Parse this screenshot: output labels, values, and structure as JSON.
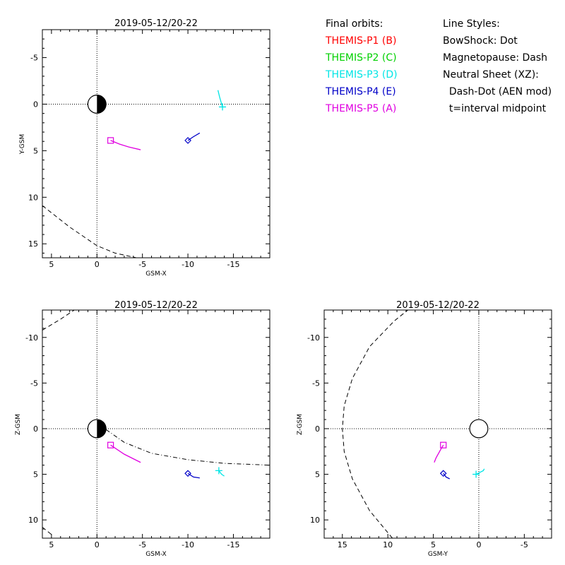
{
  "legend": {
    "orbits_title": "Final orbits:",
    "probes": [
      {
        "label": "THEMIS-P1 (B)",
        "color": "#ff0000"
      },
      {
        "label": "THEMIS-P2 (C)",
        "color": "#00d000"
      },
      {
        "label": "THEMIS-P3 (D)",
        "color": "#00e5e5"
      },
      {
        "label": "THEMIS-P4 (E)",
        "color": "#0000c8"
      },
      {
        "label": "THEMIS-P5 (A)",
        "color": "#e000e0"
      }
    ],
    "styles_title": "Line Styles:",
    "styles": [
      "BowShock: Dot",
      "Magnetopause: Dash",
      "Neutral Sheet (XZ):",
      "  Dash-Dot (AEN mod)",
      "  t=interval midpoint"
    ]
  },
  "chart_data": [
    {
      "type": "line",
      "title": "2019-05-12/20-22",
      "xlabel": "GSM-X",
      "ylabel": "Y-GSM",
      "xlim": [
        6,
        -19
      ],
      "ylim": [
        -8,
        16.5
      ],
      "xticks": [
        "5",
        "0",
        "-5",
        "-10",
        "-15"
      ],
      "yticks": [
        "-5",
        "0",
        "5",
        "10",
        "15"
      ],
      "earth": "half-shaded",
      "series": [
        {
          "probe": "THEMIS-P5 (A)",
          "color": "#e000e0",
          "marker": "square",
          "x": [
            -1.5,
            -2.5,
            -3.5,
            -4.8
          ],
          "y": [
            3.9,
            4.3,
            4.6,
            4.9
          ]
        },
        {
          "probe": "THEMIS-P4 (E)",
          "color": "#0000c8",
          "marker": "diamond",
          "x": [
            -10.0,
            -10.6,
            -11.3
          ],
          "y": [
            3.9,
            3.5,
            3.1
          ]
        },
        {
          "probe": "THEMIS-P3 (D)",
          "color": "#00e5e5",
          "marker": "plus",
          "x": [
            -13.8,
            -13.5,
            -13.3
          ],
          "y": [
            0.3,
            -0.7,
            -1.5
          ]
        }
      ],
      "boundaries": [
        {
          "name": "Magnetopause",
          "style": "dash",
          "x": [
            6,
            3,
            0,
            -2,
            -4.8
          ],
          "y": [
            10.9,
            13.2,
            15.2,
            16.0,
            16.6
          ]
        }
      ]
    },
    {
      "type": "line",
      "title": "2019-05-12/20-22",
      "xlabel": "GSM-X",
      "ylabel": "Z-GSM",
      "xlim": [
        6,
        -19
      ],
      "ylim": [
        -13,
        12
      ],
      "xticks": [
        "5",
        "0",
        "-5",
        "-10",
        "-15"
      ],
      "yticks": [
        "-10",
        "-5",
        "0",
        "5",
        "10"
      ],
      "earth": "half-shaded",
      "series": [
        {
          "probe": "THEMIS-P5 (A)",
          "color": "#e000e0",
          "marker": "square",
          "x": [
            -1.5,
            -3.0,
            -4.8
          ],
          "y": [
            1.8,
            2.8,
            3.7
          ]
        },
        {
          "probe": "THEMIS-P4 (E)",
          "color": "#0000c8",
          "marker": "diamond",
          "x": [
            -10.0,
            -10.6,
            -11.3
          ],
          "y": [
            4.9,
            5.3,
            5.4
          ]
        },
        {
          "probe": "THEMIS-P3 (D)",
          "color": "#00e5e5",
          "marker": "plus",
          "x": [
            -13.4,
            -13.7,
            -14.0
          ],
          "y": [
            4.6,
            5.0,
            5.2
          ]
        }
      ],
      "boundaries": [
        {
          "name": "Magnetopause",
          "style": "dash",
          "x": [
            6,
            5
          ],
          "y": [
            10.8,
            11.6
          ]
        },
        {
          "name": "Magnetopause",
          "style": "dash",
          "x": [
            6,
            4,
            2.5
          ],
          "y": [
            -10.8,
            -12.0,
            -13.0
          ]
        },
        {
          "name": "Neutral Sheet (XZ)",
          "style": "dashdot",
          "x": [
            -1,
            -3,
            -6,
            -10,
            -14,
            -19
          ],
          "y": [
            0.1,
            1.5,
            2.7,
            3.4,
            3.8,
            4.0
          ]
        }
      ]
    },
    {
      "type": "line",
      "title": "2019-05-12/20-22",
      "xlabel": "GSM-Y",
      "ylabel": "Z-GSM",
      "xlim": [
        17,
        -8
      ],
      "ylim": [
        -13,
        12
      ],
      "xticks": [
        "15",
        "10",
        "5",
        "0",
        "-5"
      ],
      "yticks": [
        "-10",
        "-5",
        "0",
        "5",
        "10"
      ],
      "earth": "outline",
      "series": [
        {
          "probe": "THEMIS-P5 (A)",
          "color": "#e000e0",
          "marker": "square",
          "x": [
            3.9,
            4.2,
            4.7,
            4.9
          ],
          "y": [
            1.8,
            2.3,
            3.2,
            3.7
          ]
        },
        {
          "probe": "THEMIS-P4 (E)",
          "color": "#0000c8",
          "marker": "diamond",
          "x": [
            3.9,
            3.6,
            3.2
          ],
          "y": [
            4.9,
            5.3,
            5.5
          ]
        },
        {
          "probe": "THEMIS-P3 (D)",
          "color": "#00e5e5",
          "marker": "plus",
          "x": [
            0.3,
            -0.5,
            -0.6
          ],
          "y": [
            5.0,
            4.6,
            4.4
          ]
        }
      ],
      "boundaries": [
        {
          "name": "Magnetopause",
          "style": "dash",
          "x": [
            9.5,
            12.0,
            13.9,
            14.8,
            15.0,
            14.8,
            13.9,
            12.0,
            9.3,
            7.8
          ],
          "y": [
            12.0,
            9.0,
            5.5,
            2.5,
            0,
            -2.5,
            -5.5,
            -9.0,
            -11.8,
            -13.0
          ]
        }
      ]
    }
  ]
}
